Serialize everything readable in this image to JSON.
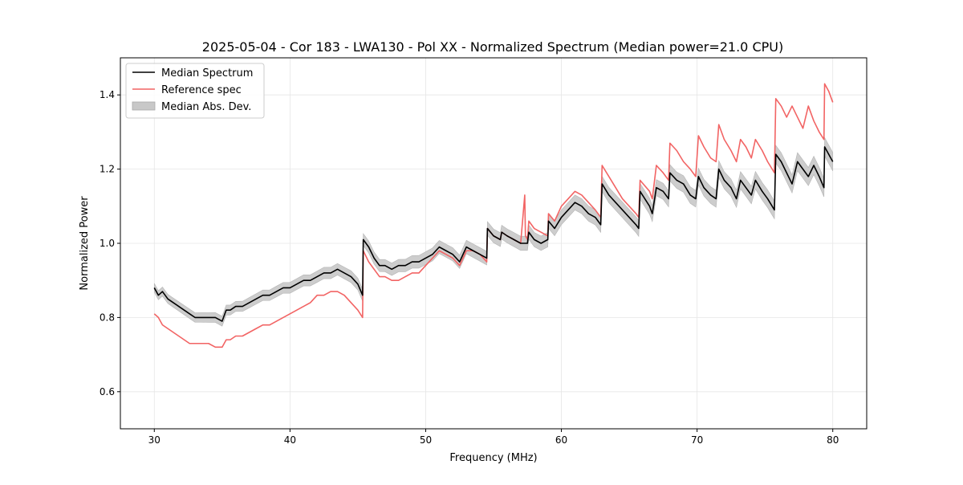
{
  "chart_data": {
    "type": "line",
    "title": "2025-05-04 - Cor 183 - LWA130 - Pol XX - Normalized Spectrum (Median power=21.0 CPU)",
    "xlabel": "Frequency (MHz)",
    "ylabel": "Normalized Power",
    "xlim": [
      27.5,
      82.5
    ],
    "ylim": [
      0.5,
      1.5
    ],
    "xticks": [
      30,
      40,
      50,
      60,
      70,
      80
    ],
    "yticks": [
      0.6,
      0.8,
      1.0,
      1.2,
      1.4
    ],
    "xtick_labels": [
      "30",
      "40",
      "50",
      "60",
      "70",
      "80"
    ],
    "ytick_labels": [
      "0.6",
      "0.8",
      "1.0",
      "1.2",
      "1.4"
    ],
    "grid": true,
    "legend": {
      "position": "top-left",
      "entries": [
        {
          "label": "Median Spectrum",
          "color": "#000000",
          "kind": "line"
        },
        {
          "label": "Reference spec",
          "color": "#f26464",
          "kind": "line"
        },
        {
          "label": "Median Abs. Dev.",
          "color": "#c8c8c8",
          "kind": "patch"
        }
      ]
    },
    "series": [
      {
        "name": "Median Spectrum",
        "color": "#000000",
        "x": [
          30.0,
          30.3,
          30.6,
          31.0,
          31.4,
          31.8,
          32.2,
          32.6,
          33.0,
          33.5,
          34.0,
          34.5,
          35.0,
          35.3,
          35.6,
          36.0,
          36.5,
          37.0,
          37.5,
          38.0,
          38.5,
          39.0,
          39.5,
          40.0,
          40.5,
          41.0,
          41.5,
          42.0,
          42.5,
          43.0,
          43.5,
          44.0,
          44.5,
          45.0,
          45.35,
          45.4,
          45.8,
          46.2,
          46.6,
          47.0,
          47.5,
          48.0,
          48.5,
          49.0,
          49.5,
          50.0,
          50.5,
          51.0,
          51.5,
          52.0,
          52.5,
          53.0,
          53.5,
          54.0,
          54.5,
          54.55,
          55.0,
          55.5,
          55.6,
          56.0,
          56.5,
          57.0,
          57.5,
          57.6,
          58.0,
          58.5,
          59.0,
          59.05,
          59.5,
          60.0,
          60.5,
          61.0,
          61.5,
          62.0,
          62.5,
          62.9,
          63.0,
          63.5,
          64.0,
          64.5,
          65.0,
          65.5,
          65.7,
          65.8,
          66.5,
          66.7,
          67.0,
          67.5,
          67.9,
          68.0,
          68.5,
          69.0,
          69.5,
          69.9,
          70.1,
          70.5,
          71.0,
          71.4,
          71.6,
          72.0,
          72.5,
          72.9,
          73.2,
          73.6,
          74.0,
          74.3,
          74.8,
          75.2,
          75.7,
          75.8,
          76.2,
          76.6,
          77.0,
          77.4,
          77.8,
          78.2,
          78.6,
          79.0,
          79.35,
          79.4,
          79.7,
          80.0
        ],
        "y": [
          0.88,
          0.86,
          0.87,
          0.85,
          0.84,
          0.83,
          0.82,
          0.81,
          0.8,
          0.8,
          0.8,
          0.8,
          0.79,
          0.82,
          0.82,
          0.83,
          0.83,
          0.84,
          0.85,
          0.86,
          0.86,
          0.87,
          0.88,
          0.88,
          0.89,
          0.9,
          0.9,
          0.91,
          0.92,
          0.92,
          0.93,
          0.92,
          0.91,
          0.89,
          0.86,
          1.01,
          0.99,
          0.96,
          0.94,
          0.94,
          0.93,
          0.94,
          0.94,
          0.95,
          0.95,
          0.96,
          0.97,
          0.99,
          0.98,
          0.97,
          0.95,
          0.99,
          0.98,
          0.97,
          0.96,
          1.04,
          1.02,
          1.01,
          1.03,
          1.02,
          1.01,
          1.0,
          1.0,
          1.03,
          1.01,
          1.0,
          1.01,
          1.06,
          1.04,
          1.07,
          1.09,
          1.11,
          1.1,
          1.08,
          1.07,
          1.05,
          1.16,
          1.13,
          1.11,
          1.09,
          1.07,
          1.05,
          1.04,
          1.14,
          1.1,
          1.08,
          1.15,
          1.14,
          1.12,
          1.19,
          1.17,
          1.16,
          1.13,
          1.12,
          1.18,
          1.15,
          1.13,
          1.12,
          1.2,
          1.17,
          1.15,
          1.12,
          1.17,
          1.15,
          1.13,
          1.17,
          1.14,
          1.12,
          1.09,
          1.24,
          1.22,
          1.19,
          1.16,
          1.22,
          1.2,
          1.18,
          1.21,
          1.18,
          1.15,
          1.26,
          1.24,
          1.22
        ]
      },
      {
        "name": "Reference spec",
        "color": "#f26464",
        "x": [
          30.0,
          30.3,
          30.6,
          31.0,
          31.4,
          31.8,
          32.2,
          32.6,
          33.0,
          33.5,
          34.0,
          34.5,
          35.0,
          35.3,
          35.6,
          36.0,
          36.5,
          37.0,
          37.5,
          38.0,
          38.5,
          39.0,
          39.5,
          40.0,
          40.5,
          41.0,
          41.5,
          42.0,
          42.5,
          43.0,
          43.5,
          44.0,
          44.5,
          45.0,
          45.35,
          45.4,
          45.8,
          46.2,
          46.6,
          47.0,
          47.5,
          48.0,
          48.5,
          49.0,
          49.5,
          50.0,
          50.5,
          51.0,
          51.5,
          52.0,
          52.5,
          53.0,
          53.5,
          54.0,
          54.5,
          54.55,
          55.0,
          55.5,
          55.6,
          56.0,
          56.5,
          57.0,
          57.3,
          57.35,
          57.5,
          57.6,
          58.0,
          58.5,
          59.0,
          59.05,
          59.5,
          60.0,
          60.5,
          61.0,
          61.5,
          62.0,
          62.5,
          62.9,
          63.0,
          63.5,
          64.0,
          64.5,
          65.0,
          65.5,
          65.7,
          65.8,
          66.5,
          66.7,
          67.0,
          67.5,
          67.9,
          68.0,
          68.5,
          69.0,
          69.5,
          69.9,
          70.1,
          70.5,
          71.0,
          71.4,
          71.6,
          72.0,
          72.5,
          72.9,
          73.2,
          73.6,
          74.0,
          74.3,
          74.8,
          75.2,
          75.7,
          75.8,
          76.2,
          76.6,
          77.0,
          77.4,
          77.8,
          78.2,
          78.6,
          79.0,
          79.35,
          79.4,
          79.7,
          80.0
        ],
        "y": [
          0.81,
          0.8,
          0.78,
          0.77,
          0.76,
          0.75,
          0.74,
          0.73,
          0.73,
          0.73,
          0.73,
          0.72,
          0.72,
          0.74,
          0.74,
          0.75,
          0.75,
          0.76,
          0.77,
          0.78,
          0.78,
          0.79,
          0.8,
          0.81,
          0.82,
          0.83,
          0.84,
          0.86,
          0.86,
          0.87,
          0.87,
          0.86,
          0.84,
          0.82,
          0.8,
          0.98,
          0.95,
          0.93,
          0.91,
          0.91,
          0.9,
          0.9,
          0.91,
          0.92,
          0.92,
          0.94,
          0.96,
          0.98,
          0.97,
          0.96,
          0.94,
          0.98,
          0.98,
          0.97,
          0.95,
          1.04,
          1.02,
          1.01,
          1.03,
          1.02,
          1.01,
          1.0,
          1.13,
          1.02,
          1.01,
          1.06,
          1.04,
          1.03,
          1.02,
          1.08,
          1.06,
          1.1,
          1.12,
          1.14,
          1.13,
          1.11,
          1.09,
          1.07,
          1.21,
          1.18,
          1.15,
          1.12,
          1.1,
          1.08,
          1.07,
          1.17,
          1.14,
          1.12,
          1.21,
          1.19,
          1.17,
          1.27,
          1.25,
          1.22,
          1.2,
          1.18,
          1.29,
          1.26,
          1.23,
          1.22,
          1.32,
          1.28,
          1.25,
          1.22,
          1.28,
          1.26,
          1.23,
          1.28,
          1.25,
          1.22,
          1.19,
          1.39,
          1.37,
          1.34,
          1.37,
          1.34,
          1.31,
          1.37,
          1.33,
          1.3,
          1.28,
          1.43,
          1.41,
          1.38
        ]
      }
    ],
    "mad_band": {
      "name": "Median Abs. Dev.",
      "color": "#c8c8c8",
      "half_width_at_30": 0.012,
      "half_width_at_80": 0.025
    }
  }
}
